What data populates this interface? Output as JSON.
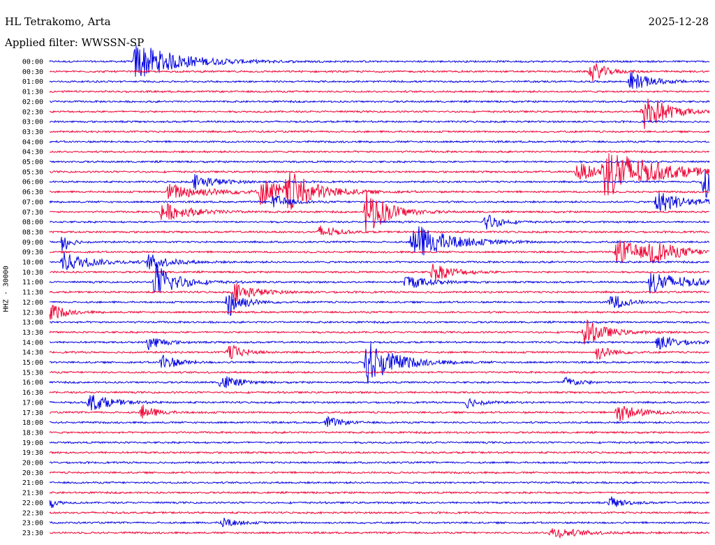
{
  "header": {
    "station": "HL Tetrakomo, Arta",
    "filter": "Applied filter: WWSSN-SP",
    "date": "2025-12-28"
  },
  "colors": {
    "even_row": "#0000e0",
    "odd_row": "#ee0033"
  },
  "chart_data": {
    "type": "line",
    "title": "HL Tetrakomo, Arta",
    "subtitle": "Applied filter: WWSSN-SP",
    "ylabel": "HHZ - 30000",
    "xlabel": "",
    "grid": false,
    "legend": "none",
    "rows": [
      "00:00",
      "00:30",
      "01:00",
      "01:30",
      "02:00",
      "02:30",
      "03:00",
      "03:30",
      "04:00",
      "04:30",
      "05:00",
      "05:30",
      "06:00",
      "06:30",
      "07:00",
      "07:30",
      "08:00",
      "08:30",
      "09:00",
      "09:30",
      "10:00",
      "10:30",
      "11:00",
      "11:30",
      "12:00",
      "12:30",
      "13:00",
      "13:30",
      "14:00",
      "14:30",
      "15:00",
      "15:30",
      "16:00",
      "16:30",
      "17:00",
      "17:30",
      "18:00",
      "18:30",
      "19:00",
      "19:30",
      "20:00",
      "20:30",
      "21:00",
      "21:30",
      "22:00",
      "22:30",
      "23:00",
      "23:30"
    ],
    "events": [
      {
        "row": "00:00",
        "t": 0.13,
        "amp": 1.0,
        "dur": 0.06
      },
      {
        "row": "00:30",
        "t": 0.82,
        "amp": 0.6,
        "dur": 0.02
      },
      {
        "row": "01:00",
        "t": 0.88,
        "amp": 0.5,
        "dur": 0.03
      },
      {
        "row": "02:30",
        "t": 0.9,
        "amp": 1.2,
        "dur": 0.03
      },
      {
        "row": "05:30",
        "t": 0.8,
        "amp": 0.5,
        "dur": 0.03
      },
      {
        "row": "05:30",
        "t": 0.84,
        "amp": 1.3,
        "dur": 0.07
      },
      {
        "row": "06:00",
        "t": 0.22,
        "amp": 0.4,
        "dur": 0.03
      },
      {
        "row": "06:00",
        "t": 0.99,
        "amp": 1.0,
        "dur": 0.02
      },
      {
        "row": "06:30",
        "t": 0.18,
        "amp": 0.4,
        "dur": 0.06
      },
      {
        "row": "06:30",
        "t": 0.32,
        "amp": 0.7,
        "dur": 0.04
      },
      {
        "row": "06:30",
        "t": 0.36,
        "amp": 0.9,
        "dur": 0.04
      },
      {
        "row": "07:00",
        "t": 0.34,
        "amp": 0.4,
        "dur": 0.02
      },
      {
        "row": "07:00",
        "t": 0.92,
        "amp": 0.6,
        "dur": 0.04
      },
      {
        "row": "07:30",
        "t": 0.17,
        "amp": 0.5,
        "dur": 0.04
      },
      {
        "row": "07:30",
        "t": 0.48,
        "amp": 1.3,
        "dur": 0.03
      },
      {
        "row": "08:00",
        "t": 0.66,
        "amp": 0.5,
        "dur": 0.02
      },
      {
        "row": "08:30",
        "t": 0.41,
        "amp": 0.4,
        "dur": 0.02
      },
      {
        "row": "09:00",
        "t": 0.02,
        "amp": 0.6,
        "dur": 0.01
      },
      {
        "row": "09:00",
        "t": 0.55,
        "amp": 1.0,
        "dur": 0.05
      },
      {
        "row": "09:30",
        "t": 0.86,
        "amp": 0.7,
        "dur": 0.04
      },
      {
        "row": "09:30",
        "t": 0.91,
        "amp": 0.5,
        "dur": 0.04
      },
      {
        "row": "10:00",
        "t": 0.02,
        "amp": 0.5,
        "dur": 0.04
      },
      {
        "row": "10:00",
        "t": 0.15,
        "amp": 0.4,
        "dur": 0.03
      },
      {
        "row": "10:30",
        "t": 0.58,
        "amp": 0.5,
        "dur": 0.03
      },
      {
        "row": "11:00",
        "t": 0.16,
        "amp": 1.0,
        "dur": 0.03
      },
      {
        "row": "11:00",
        "t": 0.54,
        "amp": 0.4,
        "dur": 0.03
      },
      {
        "row": "11:00",
        "t": 0.91,
        "amp": 0.6,
        "dur": 0.05
      },
      {
        "row": "11:30",
        "t": 0.28,
        "amp": 0.5,
        "dur": 0.03
      },
      {
        "row": "12:00",
        "t": 0.27,
        "amp": 0.9,
        "dur": 0.02
      },
      {
        "row": "12:00",
        "t": 0.85,
        "amp": 0.5,
        "dur": 0.02
      },
      {
        "row": "12:30",
        "t": 0.0,
        "amp": 0.5,
        "dur": 0.02
      },
      {
        "row": "13:30",
        "t": 0.81,
        "amp": 0.7,
        "dur": 0.03
      },
      {
        "row": "14:00",
        "t": 0.15,
        "amp": 0.4,
        "dur": 0.02
      },
      {
        "row": "14:00",
        "t": 0.92,
        "amp": 0.4,
        "dur": 0.03
      },
      {
        "row": "14:30",
        "t": 0.27,
        "amp": 0.5,
        "dur": 0.02
      },
      {
        "row": "14:30",
        "t": 0.83,
        "amp": 0.4,
        "dur": 0.02
      },
      {
        "row": "15:00",
        "t": 0.17,
        "amp": 0.5,
        "dur": 0.02
      },
      {
        "row": "15:00",
        "t": 0.48,
        "amp": 1.2,
        "dur": 0.04
      },
      {
        "row": "16:00",
        "t": 0.26,
        "amp": 0.5,
        "dur": 0.02
      },
      {
        "row": "16:00",
        "t": 0.78,
        "amp": 0.3,
        "dur": 0.02
      },
      {
        "row": "17:00",
        "t": 0.06,
        "amp": 0.5,
        "dur": 0.03
      },
      {
        "row": "17:00",
        "t": 0.63,
        "amp": 0.3,
        "dur": 0.02
      },
      {
        "row": "17:30",
        "t": 0.14,
        "amp": 0.4,
        "dur": 0.02
      },
      {
        "row": "17:30",
        "t": 0.86,
        "amp": 0.5,
        "dur": 0.03
      },
      {
        "row": "18:00",
        "t": 0.42,
        "amp": 0.3,
        "dur": 0.02
      },
      {
        "row": "22:00",
        "t": 0.0,
        "amp": 0.3,
        "dur": 0.01
      },
      {
        "row": "22:00",
        "t": 0.85,
        "amp": 0.3,
        "dur": 0.02
      },
      {
        "row": "23:00",
        "t": 0.26,
        "amp": 0.3,
        "dur": 0.02
      },
      {
        "row": "23:30",
        "t": 0.76,
        "amp": 0.3,
        "dur": 0.04
      }
    ]
  }
}
